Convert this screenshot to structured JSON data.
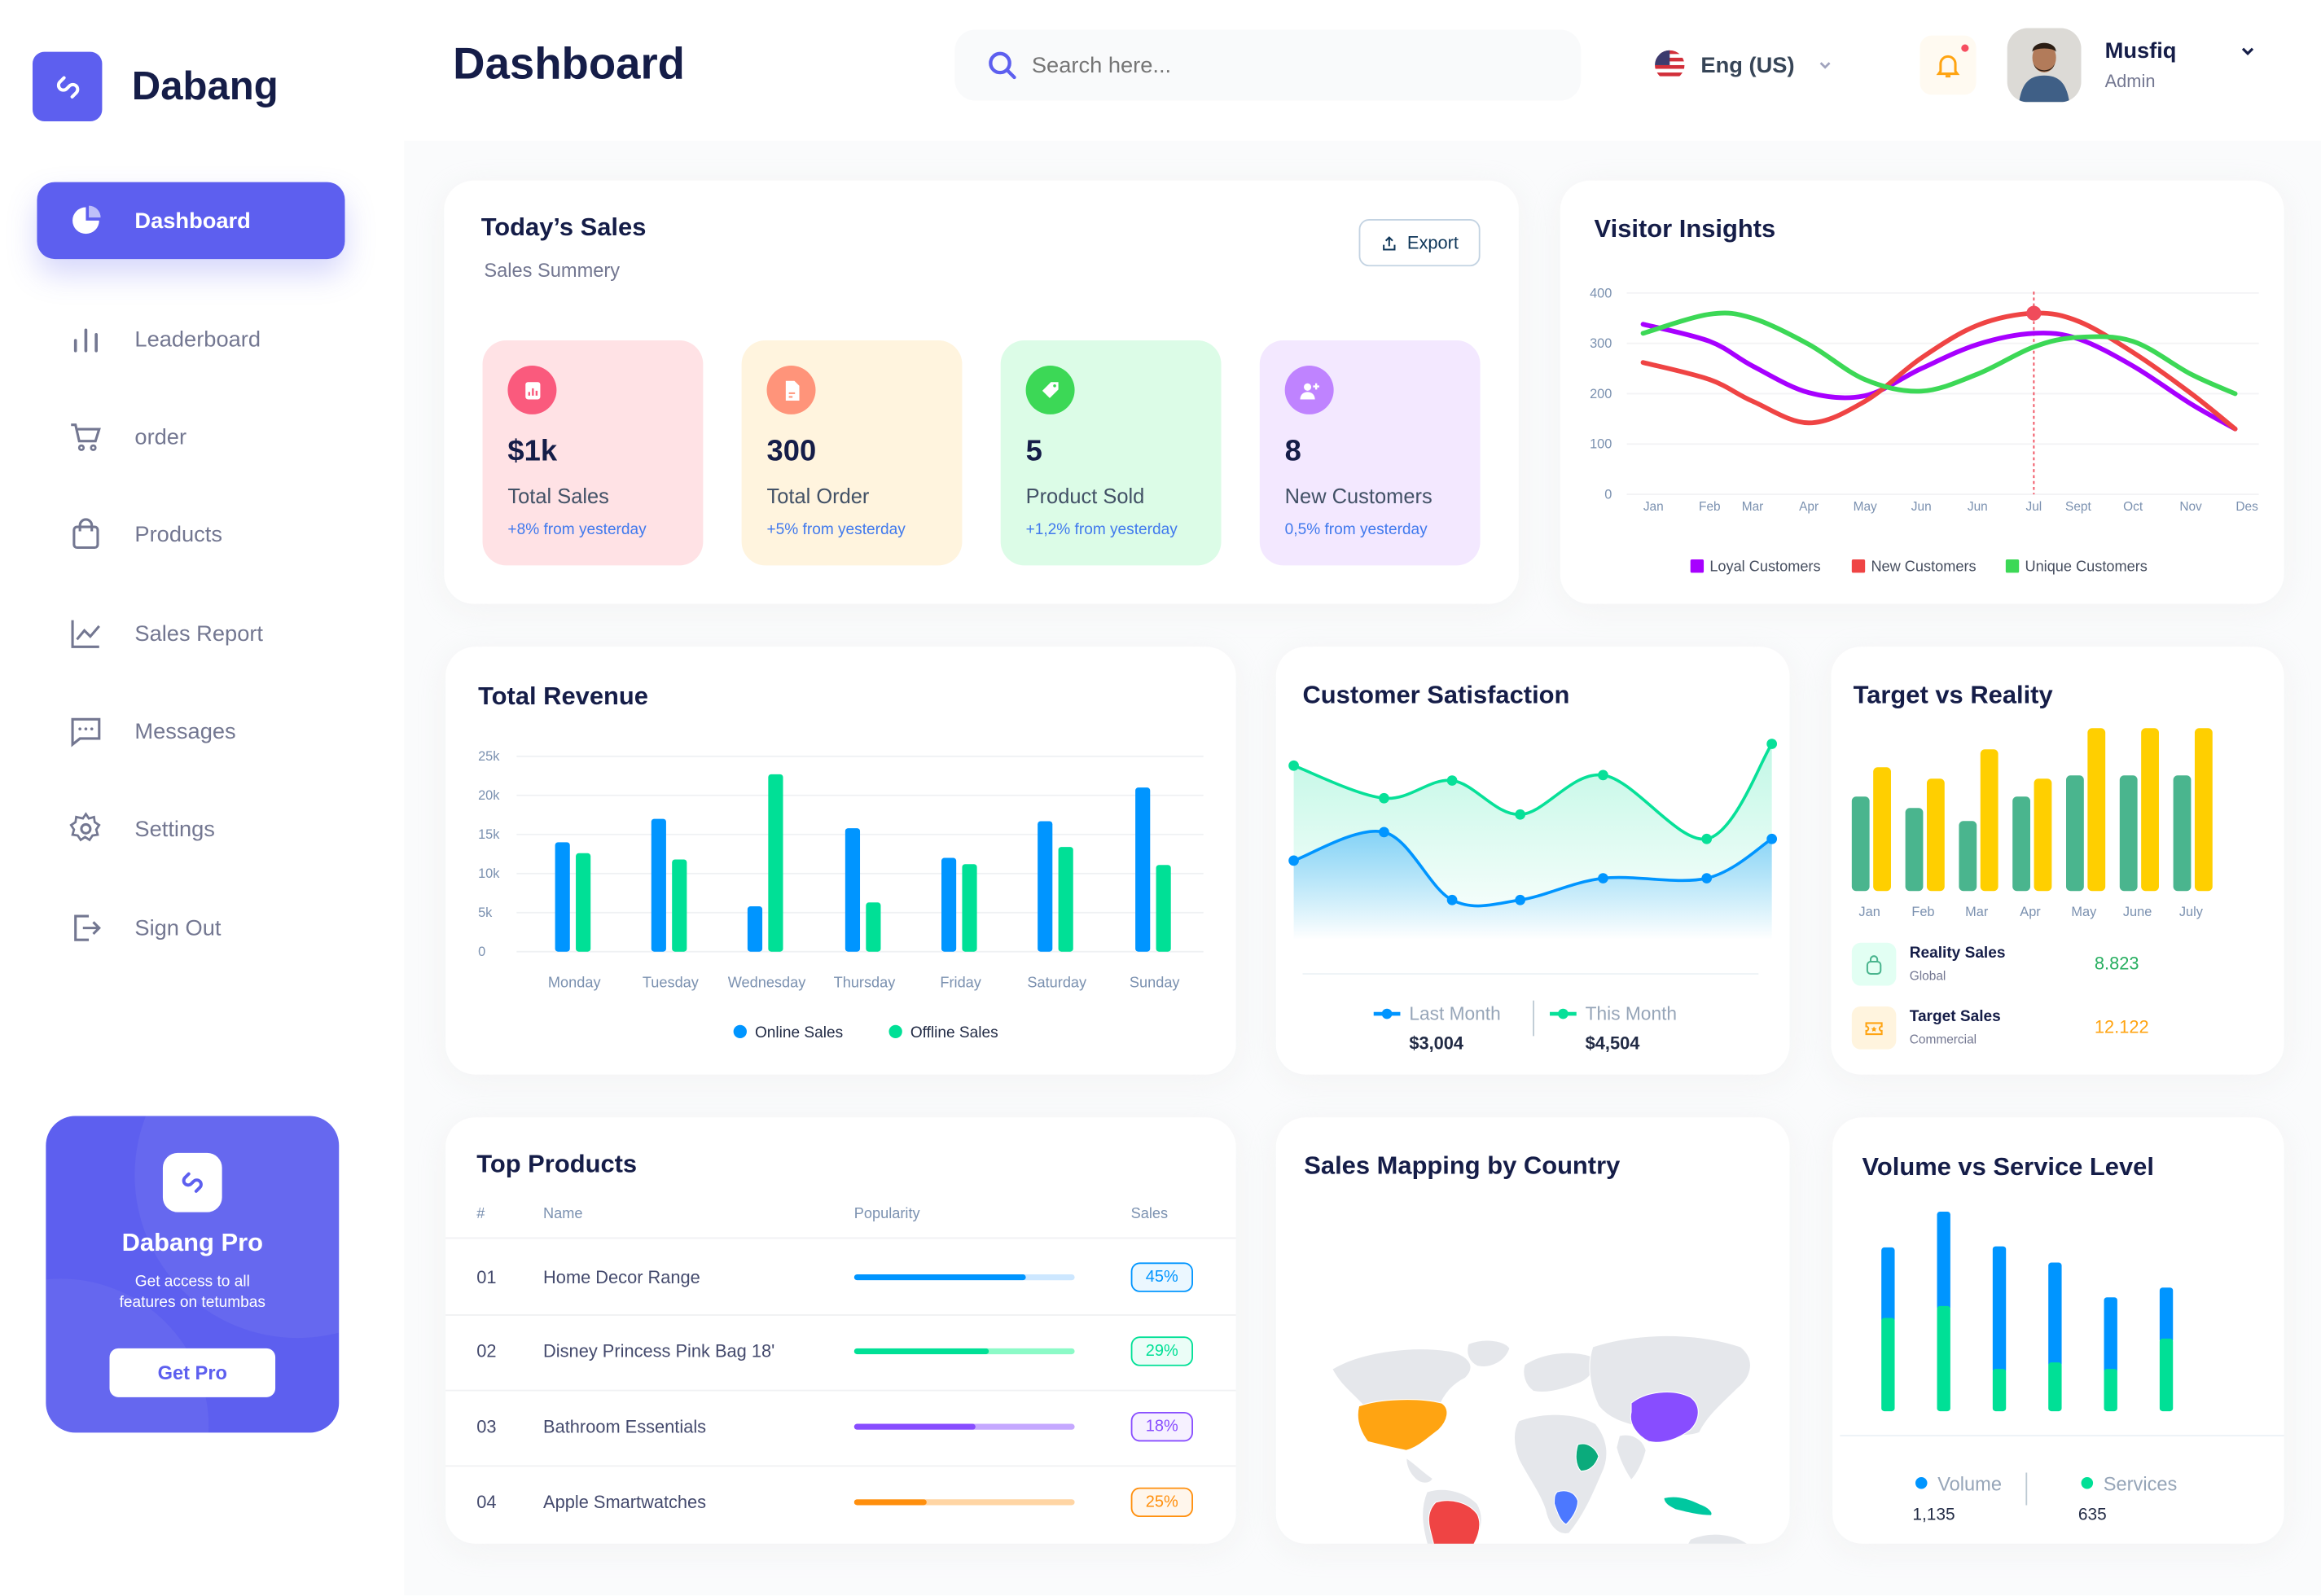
{
  "app": {
    "name": "Dabang",
    "logo_icon": "link-logo-icon",
    "accent": "#5d5fef"
  },
  "header": {
    "title": "Dashboard",
    "search": {
      "placeholder": "Search here...",
      "value": ""
    },
    "language": {
      "label": "Eng (US)",
      "flag": "us-flag-icon"
    },
    "notifications": {
      "icon": "bell-icon",
      "has_unread": true
    },
    "user": {
      "name": "Musfiq",
      "role": "Admin"
    }
  },
  "sidebar": {
    "items": [
      {
        "label": "Dashboard",
        "icon": "pie-chart-icon",
        "active": true
      },
      {
        "label": "Leaderboard",
        "icon": "bar-chart-icon"
      },
      {
        "label": "order",
        "icon": "cart-icon"
      },
      {
        "label": "Products",
        "icon": "shopping-bag-icon"
      },
      {
        "label": "Sales Report",
        "icon": "line-chart-icon"
      },
      {
        "label": "Messages",
        "icon": "message-icon"
      },
      {
        "label": "Settings",
        "icon": "gear-icon"
      },
      {
        "label": "Sign Out",
        "icon": "sign-out-icon"
      }
    ],
    "promo": {
      "title": "Dabang Pro",
      "text_line1": "Get access to all",
      "text_line2": "features on tetumbas",
      "button": "Get Pro"
    }
  },
  "todays_sales": {
    "title": "Today’s Sales",
    "subtitle": "Sales Summery",
    "export_label": "Export",
    "cards": [
      {
        "value": "$1k",
        "label": "Total Sales",
        "change": "+8% from yesterday",
        "bg": "#ffe2e5",
        "icon_bg": "#fa5a7d",
        "icon": "bar-chart-icon"
      },
      {
        "value": "300",
        "label": "Total Order",
        "change": "+5% from yesterday",
        "bg": "#fff4de",
        "icon_bg": "#ff947a",
        "icon": "document-icon"
      },
      {
        "value": "5",
        "label": "Product Sold",
        "change": "+1,2% from yesterday",
        "bg": "#dcfce7",
        "icon_bg": "#3cd856",
        "icon": "tag-icon"
      },
      {
        "value": "8",
        "label": "New Customers",
        "change": "0,5% from yesterday",
        "bg": "#f3e8ff",
        "icon_bg": "#bf83ff",
        "icon": "add-user-icon"
      }
    ]
  },
  "chart_data": [
    {
      "id": "visitor_insights",
      "type": "line",
      "title": "Visitor Insights",
      "categories": [
        "Jan",
        "Feb",
        "Mar",
        "Apr",
        "May",
        "Jun",
        "Jun",
        "Jul",
        "Sept",
        "Oct",
        "Nov",
        "Des"
      ],
      "yticks": [
        "0",
        "100",
        "200",
        "300",
        "400"
      ],
      "ylim": [
        0,
        400
      ],
      "grid": true,
      "legend": "bottom",
      "highlight": {
        "series": "New Customers",
        "category": "Jul",
        "value": 360
      },
      "series": [
        {
          "name": "Loyal Customers",
          "color": "#a700ff",
          "values": [
            338,
            304,
            255,
            202,
            196,
            250,
            298,
            320,
            309,
            255,
            180,
            130
          ]
        },
        {
          "name": "New Customers",
          "color": "#ef4444",
          "values": [
            262,
            228,
            185,
            142,
            185,
            271,
            336,
            360,
            344,
            282,
            201,
            130
          ]
        },
        {
          "name": "Unique Customers",
          "color": "#3cd856",
          "values": [
            320,
            358,
            350,
            298,
            228,
            205,
            239,
            293,
            312,
            304,
            239,
            200
          ]
        }
      ]
    },
    {
      "id": "total_revenue",
      "type": "bar",
      "title": "Total Revenue",
      "categories": [
        "Monday",
        "Tuesday",
        "Wednesday",
        "Thursday",
        "Friday",
        "Saturday",
        "Sunday"
      ],
      "yticks": [
        "0",
        "5k",
        "10k",
        "15k",
        "20k",
        "25k"
      ],
      "ylim": [
        0,
        25000
      ],
      "grid": true,
      "legend": "bottom",
      "series": [
        {
          "name": "Online Sales",
          "color": "#0095ff",
          "values": [
            14000,
            17000,
            5800,
            15800,
            12000,
            16700,
            21000
          ]
        },
        {
          "name": "Offline Sales",
          "color": "#00e096",
          "values": [
            12600,
            11800,
            22700,
            6300,
            11200,
            13400,
            11100
          ]
        }
      ]
    },
    {
      "id": "customer_satisfaction",
      "type": "area",
      "title": "Customer Satisfaction",
      "legend": "bottom",
      "series": [
        {
          "name": "Last Month",
          "total": "$3,004",
          "color": "#0095ff",
          "values": [
            33,
            43.5,
            18.5,
            18.5,
            26.5,
            26.5,
            41
          ]
        },
        {
          "name": "This Month",
          "total": "$4,504",
          "color": "#07e098",
          "values": [
            68,
            56,
            62.5,
            50,
            64.5,
            41,
            76
          ]
        }
      ]
    },
    {
      "id": "target_vs_reality",
      "type": "bar",
      "title": "Target vs Reality",
      "categories": [
        "Jan",
        "Feb",
        "Mar",
        "Apr",
        "May",
        "June",
        "July"
      ],
      "series": [
        {
          "name": "Reality Sales",
          "sublabel": "Global",
          "total": "8.823",
          "color": "#4ab58e",
          "value_color": "#27ae60",
          "icon": "shopping-bag-icon",
          "values": [
            58,
            51,
            43,
            58,
            71,
            71,
            71
          ]
        },
        {
          "name": "Target Sales",
          "sublabel": "Commercial",
          "total": "12.122",
          "color": "#ffcf00",
          "value_color": "#ffa412",
          "icon": "ticket-icon",
          "values": [
            76,
            69,
            87,
            69,
            100,
            100,
            100
          ]
        }
      ]
    },
    {
      "id": "volume_vs_service",
      "type": "bar",
      "stacked": true,
      "title": "Volume vs Service Level",
      "legend": "bottom",
      "series": [
        {
          "name": "Services",
          "total": "635",
          "color": "#00e096",
          "values": [
            86,
            97,
            39,
            45,
            39,
            67
          ]
        },
        {
          "name": "Volume",
          "total": "1,135",
          "color": "#0095ff",
          "values": [
            65,
            87,
            113,
            92,
            66,
            47
          ]
        }
      ]
    }
  ],
  "top_products": {
    "title": "Top Products",
    "columns": [
      "#",
      "Name",
      "Popularity",
      "Sales"
    ],
    "rows": [
      {
        "rank": "01",
        "name": "Home Decor Range",
        "popularity": 78,
        "sales": "45%",
        "color": "#0095ff",
        "track": "#cde7ff"
      },
      {
        "rank": "02",
        "name": "Disney Princess Pink Bag 18'",
        "popularity": 61,
        "sales": "29%",
        "color": "#00e096",
        "track": "#8cfac7"
      },
      {
        "rank": "03",
        "name": "Bathroom Essentials",
        "popularity": 55,
        "sales": "18%",
        "color": "#884dff",
        "track": "#c5a8ff"
      },
      {
        "rank": "04",
        "name": "Apple Smartwatches",
        "popularity": 33,
        "sales": "25%",
        "color": "#ff8f0d",
        "track": "#ffd5a4"
      }
    ]
  },
  "sales_map": {
    "title": "Sales Mapping by Country",
    "base_color": "#e5e7eb",
    "region_colors": {
      "usa": "#ffa412",
      "brazil": "#ef4444",
      "china": "#884dff",
      "saudi_arabia": "#0bab7c",
      "congo": "#4c78ff",
      "indonesia": "#00c8a0"
    }
  }
}
